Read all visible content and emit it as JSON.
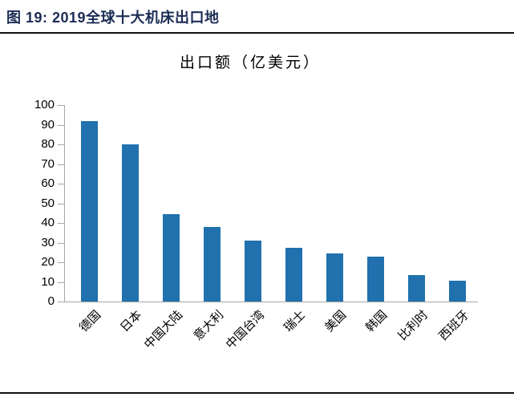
{
  "header": {
    "figure_label": "图 19: 2019全球十大机床出口地"
  },
  "chart_data": {
    "type": "bar",
    "title": "出口额（亿美元）",
    "categories": [
      "德国",
      "日本",
      "中国大陆",
      "意大利",
      "中国台湾",
      "瑞士",
      "美国",
      "韩国",
      "比利时",
      "西班牙"
    ],
    "values": [
      92,
      80,
      44.5,
      38,
      31,
      27.5,
      24.5,
      23,
      13.3,
      10.5
    ],
    "xlabel": "",
    "ylabel": "",
    "ylim": [
      0,
      100
    ],
    "ytick_step": 10,
    "ytick_labels": [
      "0",
      "10",
      "20",
      "30",
      "40",
      "50",
      "60",
      "70",
      "80",
      "90",
      "100"
    ],
    "grid": false,
    "legend": "none",
    "bar_color": "#2071ad",
    "axis_color": "#a6a6a6"
  }
}
